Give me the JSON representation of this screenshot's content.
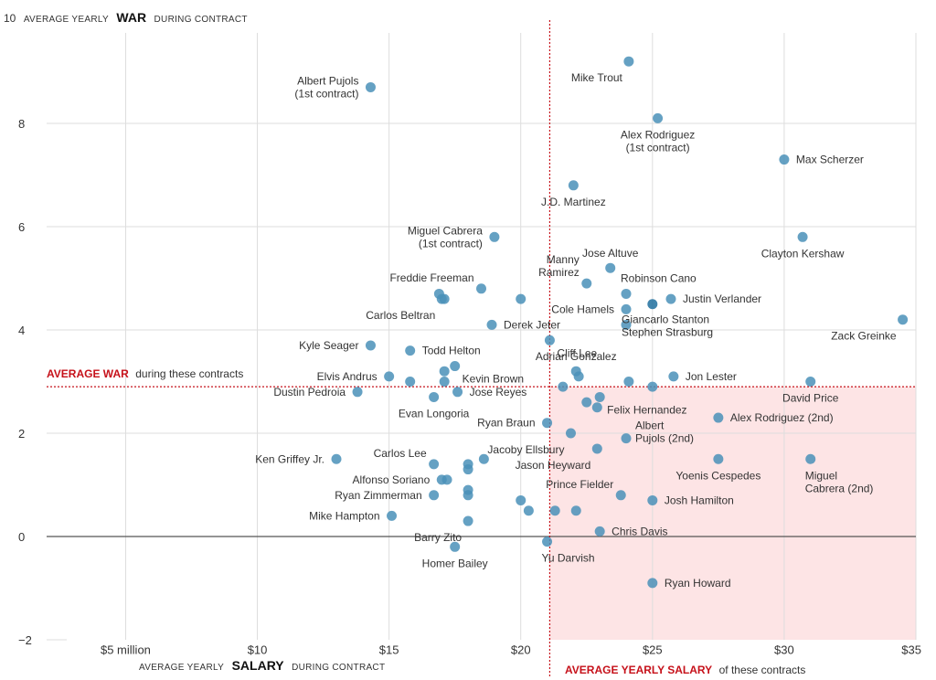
{
  "chart_data": {
    "type": "scatter",
    "y_title": {
      "number": "10",
      "pre": "AVERAGE YEARLY",
      "bold": "WAR",
      "post": "DURING CONTRACT"
    },
    "x_title": {
      "pre": "AVERAGE YEARLY",
      "bold": "SALARY",
      "post": "DURING CONTRACT"
    },
    "xlim": [
      2,
      35
    ],
    "ylim": [
      -2,
      10
    ],
    "x_ticks": [
      {
        "value": 5,
        "label": "$5 million"
      },
      {
        "value": 10,
        "label": "$10"
      },
      {
        "value": 15,
        "label": "$15"
      },
      {
        "value": 20,
        "label": "$20"
      },
      {
        "value": 25,
        "label": "$25"
      },
      {
        "value": 30,
        "label": "$30"
      },
      {
        "value": 35,
        "label": "$35"
      }
    ],
    "y_ticks": [
      {
        "value": 8,
        "label": "8"
      },
      {
        "value": 6,
        "label": "6"
      },
      {
        "value": 4,
        "label": "4"
      },
      {
        "value": 2,
        "label": "2"
      },
      {
        "value": 0,
        "label": "0"
      },
      {
        "value": -2,
        "label": "−2"
      }
    ],
    "avg_war": {
      "value": 2.9,
      "bold": "AVERAGE WAR",
      "rest": "during these contracts"
    },
    "avg_salary": {
      "value": 21.1,
      "bold": "AVERAGE YEARLY SALARY",
      "rest": "of these contracts"
    },
    "colors": {
      "point": "#4a90b8",
      "highlight": "#1f6f9e",
      "average": "#c6111a",
      "region": "#fde4e5",
      "grid": "#dddddd",
      "zero": "#555555"
    },
    "labels": [
      {
        "x": 24.1,
        "y": 9.2,
        "lines": [
          "Mike Trout"
        ],
        "pos": "below-left"
      },
      {
        "x": 14.3,
        "y": 8.7,
        "lines": [
          "Albert Pujols",
          "(1st contract)"
        ],
        "pos": "left"
      },
      {
        "x": 25.2,
        "y": 8.1,
        "lines": [
          "Alex Rodriguez",
          "(1st contract)"
        ],
        "pos": "below"
      },
      {
        "x": 30.0,
        "y": 7.3,
        "lines": [
          "Max Scherzer"
        ],
        "pos": "right"
      },
      {
        "x": 22.0,
        "y": 6.8,
        "lines": [
          "J.D. Martinez"
        ],
        "pos": "below"
      },
      {
        "x": 19.0,
        "y": 5.8,
        "lines": [
          "Miguel Cabrera",
          "(1st contract)"
        ],
        "pos": "left"
      },
      {
        "x": 30.7,
        "y": 5.8,
        "lines": [
          "Clayton Kershaw"
        ],
        "pos": "below"
      },
      {
        "x": 23.4,
        "y": 5.2,
        "lines": [
          "Jose Altuve"
        ],
        "pos": "above"
      },
      {
        "x": 22.5,
        "y": 4.9,
        "lines": [
          "Manny",
          "Ramirez"
        ],
        "pos": "above-left"
      },
      {
        "x": 24.0,
        "y": 4.7,
        "lines": [
          "Robinson Cano"
        ],
        "pos": "above-right"
      },
      {
        "x": 18.5,
        "y": 4.8,
        "lines": [
          "Freddie Freeman"
        ],
        "pos": "above-left"
      },
      {
        "x": 25.7,
        "y": 4.6,
        "lines": [
          "Justin Verlander"
        ],
        "pos": "right"
      },
      {
        "x": 24.0,
        "y": 4.4,
        "lines": [
          "Cole Hamels"
        ],
        "pos": "left"
      },
      {
        "x": 17.0,
        "y": 4.6,
        "lines": [
          "Carlos Beltran"
        ],
        "pos": "below-left"
      },
      {
        "x": 24.0,
        "y": 4.1,
        "lines": [
          "Giancarlo Stanton",
          "Stephen Strasburg"
        ],
        "pos": "right-stack"
      },
      {
        "x": 34.5,
        "y": 4.2,
        "lines": [
          "Zack Greinke"
        ],
        "pos": "below-left"
      },
      {
        "x": 18.9,
        "y": 4.1,
        "lines": [
          "Derek Jeter"
        ],
        "pos": "right"
      },
      {
        "x": 21.1,
        "y": 3.8,
        "lines": [
          "Cliff Lee"
        ],
        "pos": "right-below"
      },
      {
        "x": 14.3,
        "y": 3.7,
        "lines": [
          "Kyle Seager"
        ],
        "pos": "left"
      },
      {
        "x": 15.8,
        "y": 3.6,
        "lines": [
          "Todd Helton"
        ],
        "pos": "right"
      },
      {
        "x": 22.1,
        "y": 3.2,
        "lines": [
          "Adrian Gonzalez"
        ],
        "pos": "above"
      },
      {
        "x": 17.5,
        "y": 3.3,
        "lines": [
          "Kevin Brown"
        ],
        "pos": "right-below"
      },
      {
        "x": 15.0,
        "y": 3.1,
        "lines": [
          "Elvis Andrus"
        ],
        "pos": "left"
      },
      {
        "x": 25.8,
        "y": 3.1,
        "lines": [
          "Jon Lester"
        ],
        "pos": "right"
      },
      {
        "x": 31.0,
        "y": 3.0,
        "lines": [
          "David Price"
        ],
        "pos": "below"
      },
      {
        "x": 13.8,
        "y": 2.8,
        "lines": [
          "Dustin Pedroia"
        ],
        "pos": "left"
      },
      {
        "x": 17.6,
        "y": 2.8,
        "lines": [
          "Jose Reyes"
        ],
        "pos": "right"
      },
      {
        "x": 16.7,
        "y": 2.7,
        "lines": [
          "Evan Longoria"
        ],
        "pos": "below"
      },
      {
        "x": 23.0,
        "y": 2.7,
        "lines": [
          "Felix Hernandez"
        ],
        "pos": "right-below"
      },
      {
        "x": 27.5,
        "y": 2.3,
        "lines": [
          "Alex Rodriguez (2nd)"
        ],
        "pos": "right"
      },
      {
        "x": 21.0,
        "y": 2.2,
        "lines": [
          "Ryan Braun"
        ],
        "pos": "left"
      },
      {
        "x": 24.0,
        "y": 1.9,
        "lines": [
          "Albert",
          "Pujols (2nd)"
        ],
        "pos": "right-albert"
      },
      {
        "x": 21.9,
        "y": 2.0,
        "lines": [
          "Jacoby Ellsbury"
        ],
        "pos": "below-left"
      },
      {
        "x": 13.0,
        "y": 1.5,
        "lines": [
          "Ken Griffey Jr."
        ],
        "pos": "left"
      },
      {
        "x": 16.7,
        "y": 1.4,
        "lines": [
          "Carlos Lee"
        ],
        "pos": "above-left"
      },
      {
        "x": 22.9,
        "y": 1.7,
        "lines": [
          "Jason Heyward"
        ],
        "pos": "below-left"
      },
      {
        "x": 27.5,
        "y": 1.5,
        "lines": [
          "Yoenis Cespedes"
        ],
        "pos": "below"
      },
      {
        "x": 31.0,
        "y": 1.5,
        "lines": [
          "Miguel",
          "Cabrera (2nd)"
        ],
        "pos": "below-right"
      },
      {
        "x": 17.0,
        "y": 1.1,
        "lines": [
          "Alfonso Soriano"
        ],
        "pos": "left"
      },
      {
        "x": 23.8,
        "y": 0.8,
        "lines": [
          "Prince Fielder"
        ],
        "pos": "above-left"
      },
      {
        "x": 16.7,
        "y": 0.8,
        "lines": [
          "Ryan Zimmerman"
        ],
        "pos": "left"
      },
      {
        "x": 25.0,
        "y": 0.7,
        "lines": [
          "Josh Hamilton"
        ],
        "pos": "right"
      },
      {
        "x": 15.1,
        "y": 0.4,
        "lines": [
          "Mike Hampton"
        ],
        "pos": "left"
      },
      {
        "x": 18.0,
        "y": 0.3,
        "lines": [
          "Barry Zito"
        ],
        "pos": "below-left"
      },
      {
        "x": 23.0,
        "y": 0.1,
        "lines": [
          "Chris Davis"
        ],
        "pos": "right"
      },
      {
        "x": 17.5,
        "y": -0.2,
        "lines": [
          "Homer Bailey"
        ],
        "pos": "below"
      },
      {
        "x": 21.0,
        "y": -0.1,
        "lines": [
          "Yu Darvish"
        ],
        "pos": "below-right"
      },
      {
        "x": 25.0,
        "y": -0.9,
        "lines": [
          "Ryan Howard"
        ],
        "pos": "right"
      }
    ],
    "extra_points": [
      {
        "x": 25.0,
        "y": 4.5,
        "highlight": true
      },
      {
        "x": 17.1,
        "y": 4.6
      },
      {
        "x": 20.0,
        "y": 4.6
      },
      {
        "x": 16.9,
        "y": 4.7
      },
      {
        "x": 15.8,
        "y": 3.0
      },
      {
        "x": 17.1,
        "y": 3.0
      },
      {
        "x": 17.1,
        "y": 3.2
      },
      {
        "x": 21.6,
        "y": 2.9
      },
      {
        "x": 22.2,
        "y": 3.1
      },
      {
        "x": 24.1,
        "y": 3.0
      },
      {
        "x": 25.0,
        "y": 2.9
      },
      {
        "x": 22.5,
        "y": 2.6
      },
      {
        "x": 22.9,
        "y": 2.5
      },
      {
        "x": 18.6,
        "y": 1.5
      },
      {
        "x": 18.0,
        "y": 1.4
      },
      {
        "x": 18.0,
        "y": 1.3
      },
      {
        "x": 17.2,
        "y": 1.1
      },
      {
        "x": 18.0,
        "y": 0.9
      },
      {
        "x": 18.0,
        "y": 0.8
      },
      {
        "x": 20.0,
        "y": 0.7
      },
      {
        "x": 20.3,
        "y": 0.5
      },
      {
        "x": 21.3,
        "y": 0.5
      },
      {
        "x": 22.1,
        "y": 0.5
      }
    ]
  }
}
